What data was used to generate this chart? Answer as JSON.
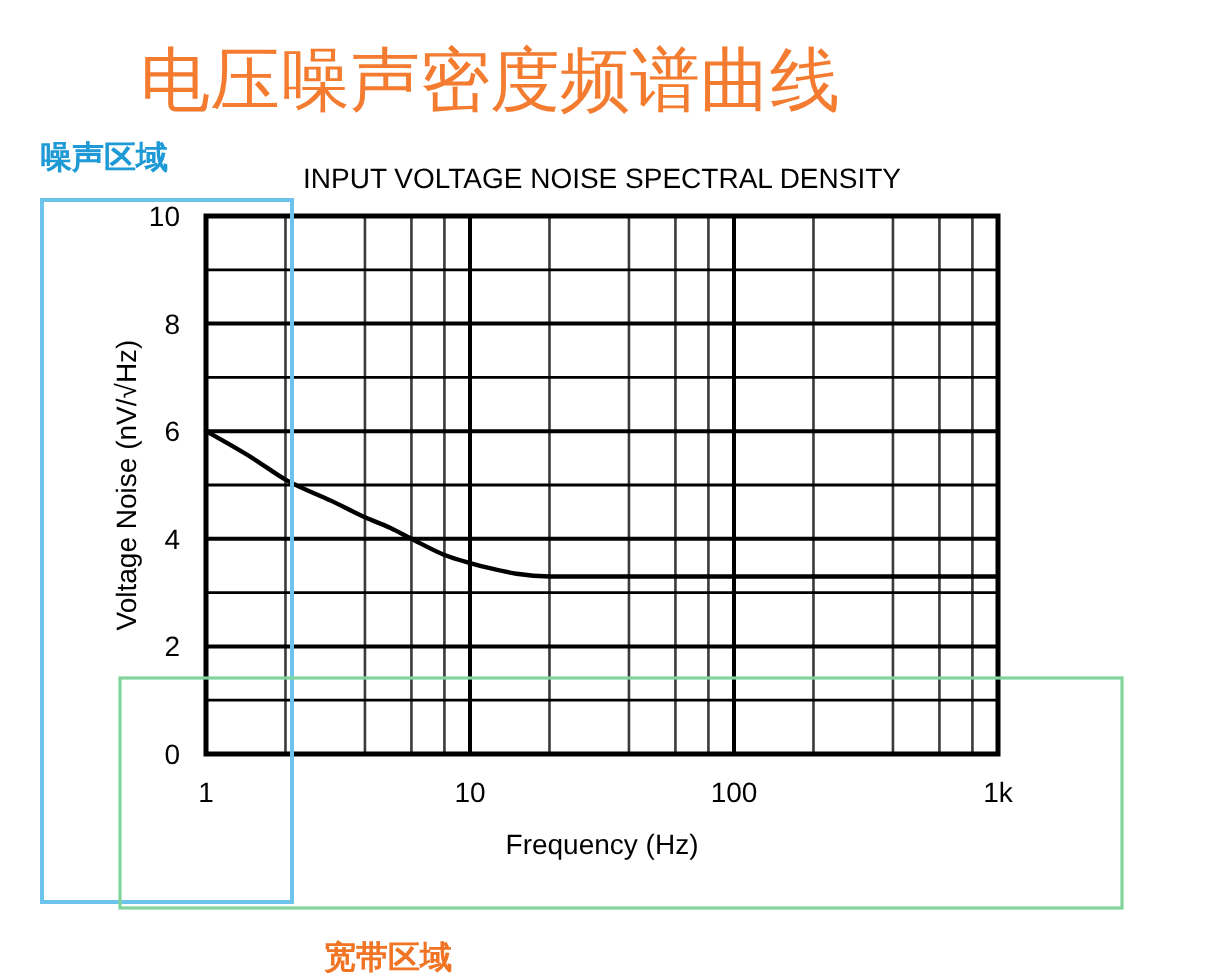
{
  "chart_data": {
    "type": "line",
    "title": "电压噪声密度频谱曲线",
    "subtitle": "INPUT VOLTAGE NOISE SPECTRAL DENSITY",
    "xlabel": "Frequency (Hz)",
    "ylabel": "Voltage Noise (nV/√Hz)",
    "annotations": [
      "噪声区域",
      "宽带区域"
    ],
    "x": [
      1,
      1.5,
      2,
      3,
      4,
      5,
      6,
      8,
      10,
      12,
      15,
      20,
      50,
      100,
      1000
    ],
    "series": [
      {
        "color": "#000000",
        "values": [
          6.0,
          5.5,
          5.1,
          4.7,
          4.4,
          4.2,
          4.0,
          3.7,
          3.55,
          3.45,
          3.35,
          3.3,
          3.3,
          3.3,
          3.3
        ]
      }
    ],
    "xlim": [
      1,
      1000
    ],
    "ylim": [
      0,
      10
    ],
    "xticks": [
      1,
      {
        "value": 2,
        "label": null
      },
      {
        "value": 4,
        "label": null
      },
      {
        "value": 6,
        "label": null
      },
      {
        "value": 8,
        "label": null
      },
      10,
      {
        "value": 20,
        "label": null
      },
      {
        "value": 40,
        "label": null
      },
      {
        "value": 60,
        "label": null
      },
      {
        "value": 80,
        "label": null
      },
      100,
      {
        "value": 200,
        "label": null
      },
      {
        "value": 400,
        "label": null
      },
      {
        "value": 600,
        "label": null
      },
      {
        "value": 800,
        "label": null
      },
      {
        "value": 1000,
        "label": "1k"
      }
    ],
    "yticks": [
      0,
      {
        "value": 1,
        "label": null
      },
      2,
      {
        "value": 3,
        "label": null
      },
      4,
      {
        "value": 5,
        "label": null
      },
      6,
      {
        "value": 7,
        "label": null
      },
      8,
      {
        "value": 9,
        "label": null
      },
      10
    ],
    "log": "x",
    "grid": true
  }
}
